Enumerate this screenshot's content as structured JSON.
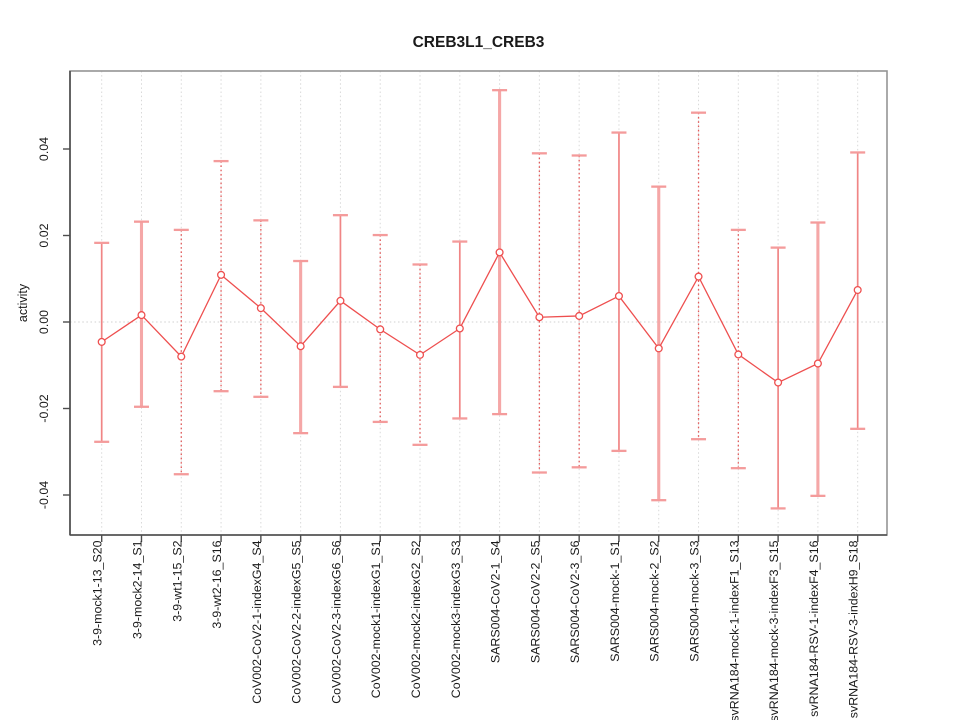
{
  "window": {
    "title": "CREB3L1_CREB3 activity plot"
  },
  "chart_data": {
    "type": "line",
    "subtype": "point-estimates-with-error-bars",
    "title": "CREB3L1_CREB3",
    "xlabel": "",
    "ylabel": "activity",
    "ylim": [
      -0.0492,
      0.058
    ],
    "ytick_values": [
      -0.04,
      -0.02,
      0,
      0.02,
      0.04
    ],
    "ytick_labels": [
      "-0.04",
      "-0.02",
      "0.00",
      "0.02",
      "0.04"
    ],
    "grid": "vertical dotted gridline per category; dotted horizontal reference line at y=0; no legend",
    "legend_position": "none",
    "categories": [
      "3-9-mock1-13_S20",
      "3-9-mock2-14_S1",
      "3-9-wt1-15_S2",
      "3-9-wt2-16_S16",
      "CoV002-CoV2-1-indexG4_S4",
      "CoV002-CoV2-2-indexG5_S5",
      "CoV002-CoV2-3-indexG6_S6",
      "CoV002-mock1-indexG1_S1",
      "CoV002-mock2-indexG2_S2",
      "CoV002-mock3-indexG3_S3",
      "SARS004-CoV2-1_S4",
      "SARS004-CoV2-2_S5",
      "SARS004-CoV2-3_S6",
      "SARS004-mock-1_S1",
      "SARS004-mock-2_S2",
      "SARS004-mock-3_S3",
      "svRNA184-mock-1-indexF1_S13",
      "svRNA184-mock-3-indexF3_S15",
      "svRNA184-RSV-1-indexF4_S16",
      "svRNA184-RSV-3-indexH9_S18"
    ],
    "series": [
      {
        "name": "activity",
        "marker": "open-circle",
        "values": [
          -0.0046,
          0.0016,
          -0.008,
          0.0109,
          0.0032,
          -0.0056,
          0.0049,
          -0.0017,
          -0.0076,
          -0.0015,
          0.0161,
          0.0011,
          0.0014,
          0.006,
          -0.0061,
          0.0105,
          -0.0075,
          -0.014,
          -0.0096,
          0.0074
        ],
        "err_low": [
          -0.0277,
          -0.0196,
          -0.0352,
          -0.016,
          -0.0173,
          -0.0257,
          -0.015,
          -0.0231,
          -0.0284,
          -0.0223,
          -0.0213,
          -0.0348,
          -0.0336,
          -0.0298,
          -0.0412,
          -0.0271,
          -0.0338,
          -0.0431,
          -0.0402,
          -0.0247
        ],
        "err_high": [
          0.0183,
          0.0232,
          0.0213,
          0.0372,
          0.0235,
          0.0141,
          0.0247,
          0.0201,
          0.0133,
          0.0186,
          0.0536,
          0.039,
          0.0385,
          0.0438,
          0.0313,
          0.0484,
          0.0213,
          0.0172,
          0.023,
          0.0392
        ],
        "bar_styles": [
          "medium",
          "thick",
          "dotted",
          "dotted",
          "dotted",
          "thick",
          "medium",
          "dotted",
          "dotted",
          "medium",
          "thick",
          "dotted",
          "dotted",
          "medium",
          "thick",
          "dotted",
          "dotted",
          "medium",
          "thick",
          "medium"
        ]
      }
    ]
  },
  "colors": {
    "series_red": "#ee4f4f",
    "bar_thick_pink": "#f5a7a7",
    "bar_medium_pink": "#f08585",
    "bar_dotted_red": "#e25b5b",
    "cap_pink": "#f49b9b",
    "grid": "#d9d9d9",
    "zero_line": "#d0d0d0",
    "box": "#949494",
    "axis": "#4d4d4d",
    "text": "#1a1a1a",
    "background": "#ffffff"
  }
}
